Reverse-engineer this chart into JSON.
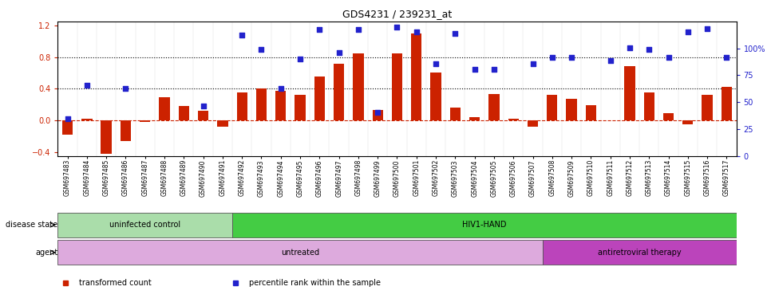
{
  "title": "GDS4231 / 239231_at",
  "samples": [
    "GSM697483",
    "GSM697484",
    "GSM697485",
    "GSM697486",
    "GSM697487",
    "GSM697488",
    "GSM697489",
    "GSM697490",
    "GSM697491",
    "GSM697492",
    "GSM697493",
    "GSM697494",
    "GSM697495",
    "GSM697496",
    "GSM697497",
    "GSM697498",
    "GSM697499",
    "GSM697500",
    "GSM697501",
    "GSM697502",
    "GSM697503",
    "GSM697504",
    "GSM697505",
    "GSM697506",
    "GSM697507",
    "GSM697508",
    "GSM697509",
    "GSM697510",
    "GSM697511",
    "GSM697512",
    "GSM697513",
    "GSM697514",
    "GSM697515",
    "GSM697516",
    "GSM697517"
  ],
  "bar_values": [
    -0.18,
    0.02,
    -0.42,
    -0.26,
    -0.02,
    0.29,
    0.18,
    0.12,
    -0.08,
    0.35,
    0.4,
    0.37,
    0.32,
    0.55,
    0.72,
    0.85,
    0.13,
    0.85,
    1.1,
    0.6,
    0.16,
    0.04,
    0.33,
    0.02,
    -0.08,
    0.32,
    0.27,
    0.19,
    0.0,
    0.69,
    0.35,
    0.09,
    -0.05,
    0.32,
    0.42
  ],
  "blue_values": [
    0.02,
    0.44,
    null,
    0.4,
    null,
    null,
    null,
    0.18,
    null,
    1.08,
    0.9,
    0.4,
    0.78,
    1.15,
    0.86,
    1.15,
    0.1,
    1.18,
    1.12,
    0.72,
    1.1,
    0.65,
    0.65,
    null,
    0.72,
    0.8,
    0.8,
    null,
    0.76,
    0.92,
    0.9,
    0.8,
    1.12,
    1.16,
    0.8
  ],
  "bar_color": "#cc2200",
  "dot_color": "#2222cc",
  "zero_line_color": "#cc2200",
  "ylim_left": [
    -0.45,
    1.25
  ],
  "ylim_right": [
    0,
    125
  ],
  "yticks_left": [
    -0.4,
    0.0,
    0.4,
    0.8,
    1.2
  ],
  "yticks_right": [
    0,
    25,
    50,
    75,
    100
  ],
  "ytick_labels_right": [
    "0",
    "25",
    "50",
    "75",
    "100%"
  ],
  "hlines": [
    0.4,
    0.8
  ],
  "disease_state_regions": [
    {
      "label": "uninfected control",
      "start": 0,
      "end": 9,
      "color": "#aaddaa"
    },
    {
      "label": "HIV1-HAND",
      "start": 9,
      "end": 35,
      "color": "#44cc44"
    }
  ],
  "agent_regions": [
    {
      "label": "untreated",
      "start": 0,
      "end": 25,
      "color": "#ddaadd"
    },
    {
      "label": "antiretroviral therapy",
      "start": 25,
      "end": 35,
      "color": "#bb44bb"
    }
  ],
  "legend_items": [
    {
      "label": "transformed count",
      "color": "#cc2200"
    },
    {
      "label": "percentile rank within the sample",
      "color": "#2222cc"
    }
  ],
  "disease_label": "disease state",
  "agent_label": "agent",
  "bar_width": 0.55
}
